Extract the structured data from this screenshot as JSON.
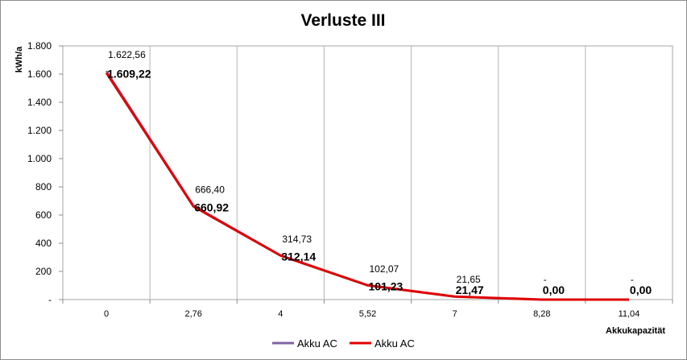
{
  "chart_data": {
    "type": "line",
    "title": "Verluste III",
    "ylabel": "kWh/a",
    "xlabel": "Akkukapazität",
    "categories": [
      "0",
      "2,76",
      "4",
      "5,52",
      "7",
      "8,28",
      "11,04"
    ],
    "y_ticks": [
      "-",
      "200",
      "400",
      "600",
      "800",
      "1.000",
      "1.200",
      "1.400",
      "1.600",
      "1.800"
    ],
    "ylim": [
      0,
      1800
    ],
    "grid": "vertical",
    "legend_position": "bottom",
    "series": [
      {
        "name": "Akku AC",
        "color": "#8064a2",
        "values": [
          1622.56,
          666.4,
          314.73,
          102.07,
          21.65,
          0,
          0
        ],
        "labels": [
          "1.622,56",
          "666,40",
          "314,73",
          "102,07",
          "21,65",
          "-",
          "-"
        ]
      },
      {
        "name": "Akku AC",
        "color": "#e00000",
        "values": [
          1609.22,
          660.92,
          312.14,
          101.23,
          21.47,
          0.0,
          0.0
        ],
        "labels": [
          "1.609,22",
          "660,92",
          "312,14",
          "101,23",
          "21,47",
          "0,00",
          "0,00"
        ]
      }
    ]
  }
}
